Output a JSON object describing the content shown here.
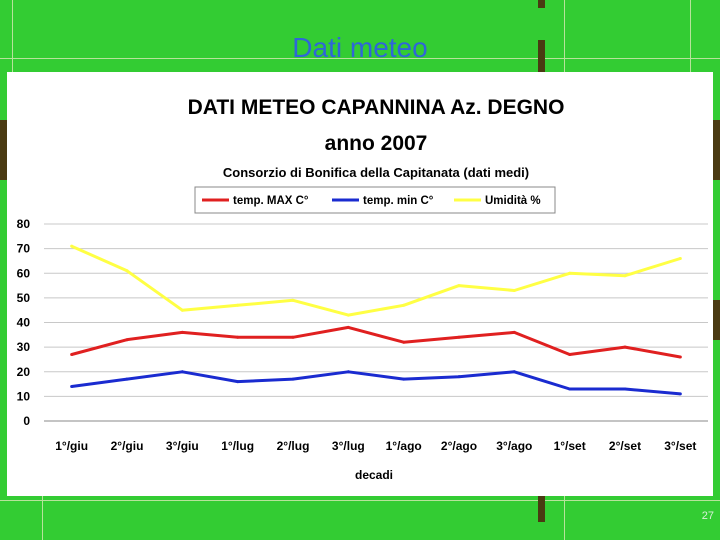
{
  "slide": {
    "title": "Dati meteo",
    "number": "27"
  },
  "colors": {
    "background": "#33cc33",
    "title": "#2f66d8",
    "temp_max": "#e02020",
    "temp_min": "#1a2bd0",
    "humidity": "#ffff44"
  },
  "chart_data": {
    "type": "line",
    "title": "DATI METEO CAPANNINA Az. DEGNO",
    "title_line2": "anno 2007",
    "subtitle": "Consorzio di Bonifica della Capitanata (dati medi)",
    "xlabel": "decadi",
    "ylabel": "",
    "ylim": [
      0,
      80
    ],
    "yticks": [
      0,
      10,
      20,
      30,
      40,
      50,
      60,
      70,
      80
    ],
    "grid": true,
    "legend_position": "top",
    "categories": [
      "1°/giu",
      "2°/giu",
      "3°/giu",
      "1°/lug",
      "2°/lug",
      "3°/lug",
      "1°/ago",
      "2°/ago",
      "3°/ago",
      "1°/set",
      "2°/set",
      "3°/set"
    ],
    "series": [
      {
        "name": "temp. MAX C°",
        "color": "#e02020",
        "values": [
          27,
          33,
          36,
          34,
          34,
          38,
          32,
          34,
          36,
          27,
          30,
          26
        ]
      },
      {
        "name": "temp. min C°",
        "color": "#1a2bd0",
        "values": [
          14,
          17,
          20,
          16,
          17,
          20,
          17,
          18,
          20,
          13,
          13,
          11
        ]
      },
      {
        "name": "Umidità %",
        "color": "#ffff44",
        "values": [
          71,
          61,
          45,
          47,
          49,
          43,
          47,
          55,
          53,
          60,
          59,
          66
        ]
      }
    ]
  }
}
